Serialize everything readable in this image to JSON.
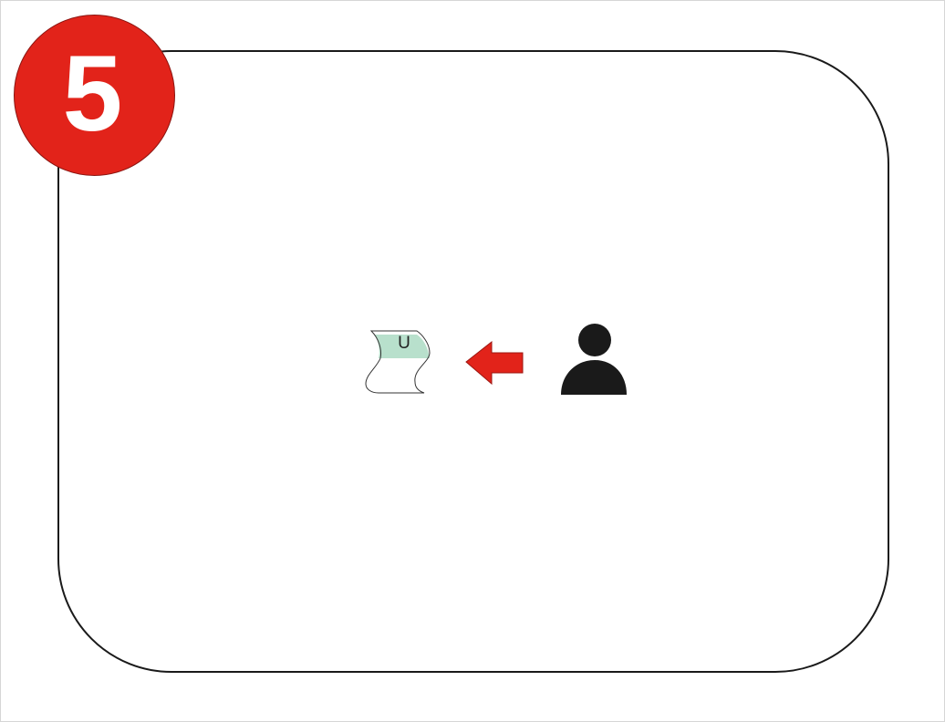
{
  "step": {
    "number": "5",
    "badge_color": "#e2231a"
  },
  "document": {
    "icon": "document-icon",
    "letter": "U",
    "highlight_color": "#b8e0cc"
  },
  "arrow": {
    "icon": "arrow-left-icon",
    "color": "#e2231a"
  },
  "user": {
    "icon": "person-icon",
    "color": "#1a1a1a"
  }
}
